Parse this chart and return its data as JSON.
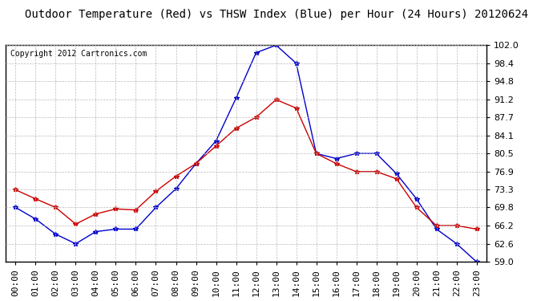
{
  "title": "Outdoor Temperature (Red) vs THSW Index (Blue) per Hour (24 Hours) 20120624",
  "copyright": "Copyright 2012 Cartronics.com",
  "hours": [
    "00:00",
    "01:00",
    "02:00",
    "03:00",
    "04:00",
    "05:00",
    "06:00",
    "07:00",
    "08:00",
    "09:00",
    "10:00",
    "11:00",
    "12:00",
    "13:00",
    "14:00",
    "15:00",
    "16:00",
    "17:00",
    "18:00",
    "19:00",
    "20:00",
    "21:00",
    "22:00",
    "23:00"
  ],
  "red_temp": [
    73.3,
    71.5,
    69.8,
    66.5,
    68.5,
    69.5,
    69.3,
    73.0,
    76.0,
    78.5,
    82.0,
    85.5,
    87.7,
    91.2,
    89.5,
    80.5,
    78.5,
    76.9,
    76.9,
    75.5,
    69.8,
    66.2,
    66.2,
    65.5
  ],
  "blue_thsw": [
    69.8,
    67.5,
    64.5,
    62.6,
    65.0,
    65.5,
    65.5,
    69.8,
    73.5,
    78.5,
    83.0,
    91.5,
    100.5,
    102.0,
    98.4,
    80.5,
    79.5,
    80.5,
    80.5,
    76.5,
    71.5,
    65.5,
    62.6,
    59.0
  ],
  "red_color": "#cc0000",
  "blue_color": "#0000cc",
  "ylim_min": 59.0,
  "ylim_max": 102.0,
  "yticks": [
    59.0,
    62.6,
    66.2,
    69.8,
    73.3,
    76.9,
    80.5,
    84.1,
    87.7,
    91.2,
    94.8,
    98.4,
    102.0
  ],
  "background_color": "#ffffff",
  "grid_color": "#bbbbbb",
  "title_fontsize": 10,
  "tick_fontsize": 8,
  "copyright_fontsize": 7
}
